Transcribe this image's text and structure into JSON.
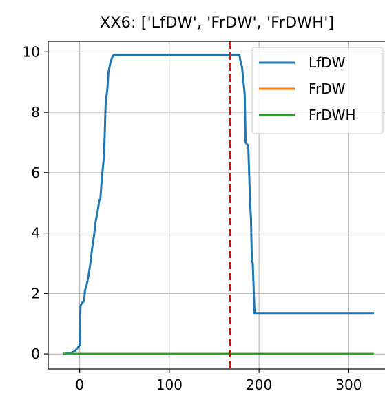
{
  "chart_data": {
    "type": "line",
    "title": "XX6: ['LfDW', 'FrDW', 'FrDWH']",
    "xlabel": "",
    "ylabel": "",
    "xlim": [
      -35,
      345
    ],
    "ylim": [
      -0.5,
      10.35
    ],
    "xticks": [
      0,
      100,
      200,
      300
    ],
    "yticks": [
      0,
      2,
      4,
      6,
      8,
      10
    ],
    "grid": true,
    "legend_position": "top-right",
    "vline": {
      "x": 168,
      "color": "#ff0000",
      "style": "dashed"
    },
    "series": [
      {
        "name": "LfDW",
        "color": "#1f77b4",
        "points": [
          [
            -18,
            0
          ],
          [
            -10,
            0.03
          ],
          [
            -5,
            0.1
          ],
          [
            0,
            0.28
          ],
          [
            1,
            1.6
          ],
          [
            3,
            1.7
          ],
          [
            5,
            1.75
          ],
          [
            6,
            2.1
          ],
          [
            8,
            2.3
          ],
          [
            10,
            2.6
          ],
          [
            12,
            3.0
          ],
          [
            14,
            3.5
          ],
          [
            16,
            3.9
          ],
          [
            18,
            4.4
          ],
          [
            20,
            4.7
          ],
          [
            22,
            5.1
          ],
          [
            23,
            5.1
          ],
          [
            25,
            5.9
          ],
          [
            27,
            6.5
          ],
          [
            28,
            7.3
          ],
          [
            29,
            8.3
          ],
          [
            31,
            8.8
          ],
          [
            32,
            9.3
          ],
          [
            34,
            9.6
          ],
          [
            36,
            9.8
          ],
          [
            38,
            9.9
          ],
          [
            178,
            9.9
          ],
          [
            180,
            9.6
          ],
          [
            181,
            9.5
          ],
          [
            182,
            9.2
          ],
          [
            184,
            8.6
          ],
          [
            185,
            7.0
          ],
          [
            188,
            6.9
          ],
          [
            190,
            5.0
          ],
          [
            191,
            4.5
          ],
          [
            192,
            3.1
          ],
          [
            193,
            3.0
          ],
          [
            195,
            1.35
          ],
          [
            328,
            1.35
          ]
        ]
      },
      {
        "name": "FrDW",
        "color": "#ff7f0e",
        "points": [
          [
            -18,
            0
          ],
          [
            328,
            0
          ]
        ]
      },
      {
        "name": "FrDWH",
        "color": "#2ca02c",
        "points": [
          [
            -18,
            0
          ],
          [
            328,
            0
          ]
        ]
      }
    ]
  }
}
